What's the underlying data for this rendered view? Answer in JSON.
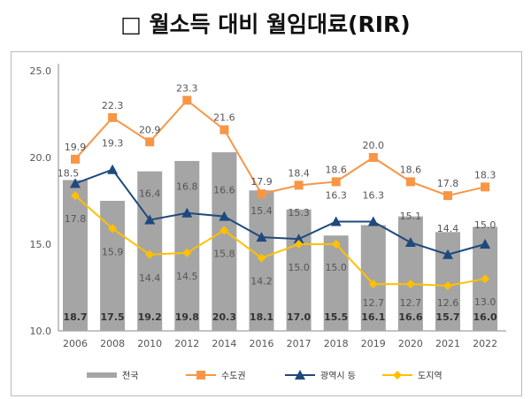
{
  "chart_data": {
    "type": "bar+line",
    "title": "□ 월소득 대비 월임대료(RIR)",
    "categories": [
      "2006",
      "2008",
      "2010",
      "2012",
      "2014",
      "2016",
      "2017",
      "2018",
      "2019",
      "2020",
      "2021",
      "2022"
    ],
    "ylim": [
      10.0,
      25.0
    ],
    "yticks": [
      "10.0",
      "15.0",
      "20.0",
      "25.0"
    ],
    "grid": false,
    "legend_position": "bottom",
    "series": [
      {
        "name": "전국",
        "kind": "bar",
        "color": "#a5a5a5",
        "values": [
          18.7,
          17.5,
          19.2,
          19.8,
          20.3,
          18.1,
          17.0,
          15.5,
          16.1,
          16.6,
          15.7,
          16.0
        ]
      },
      {
        "name": "수도권",
        "kind": "line",
        "marker": "square",
        "color": "#f79646",
        "values": [
          19.9,
          22.3,
          20.9,
          23.3,
          21.6,
          17.9,
          18.4,
          18.6,
          20.0,
          18.6,
          17.8,
          18.3
        ]
      },
      {
        "name": "광역시 등",
        "kind": "line",
        "marker": "triangle",
        "color": "#1f497d",
        "values": [
          18.5,
          19.3,
          16.4,
          16.8,
          16.6,
          15.4,
          15.3,
          16.3,
          16.3,
          15.1,
          14.4,
          15.0
        ]
      },
      {
        "name": "도지역",
        "kind": "line",
        "marker": "diamond",
        "color": "#ffc000",
        "values": [
          17.8,
          15.9,
          14.4,
          14.5,
          15.8,
          14.2,
          15.0,
          15.0,
          12.7,
          12.7,
          12.6,
          13.0
        ]
      }
    ]
  }
}
